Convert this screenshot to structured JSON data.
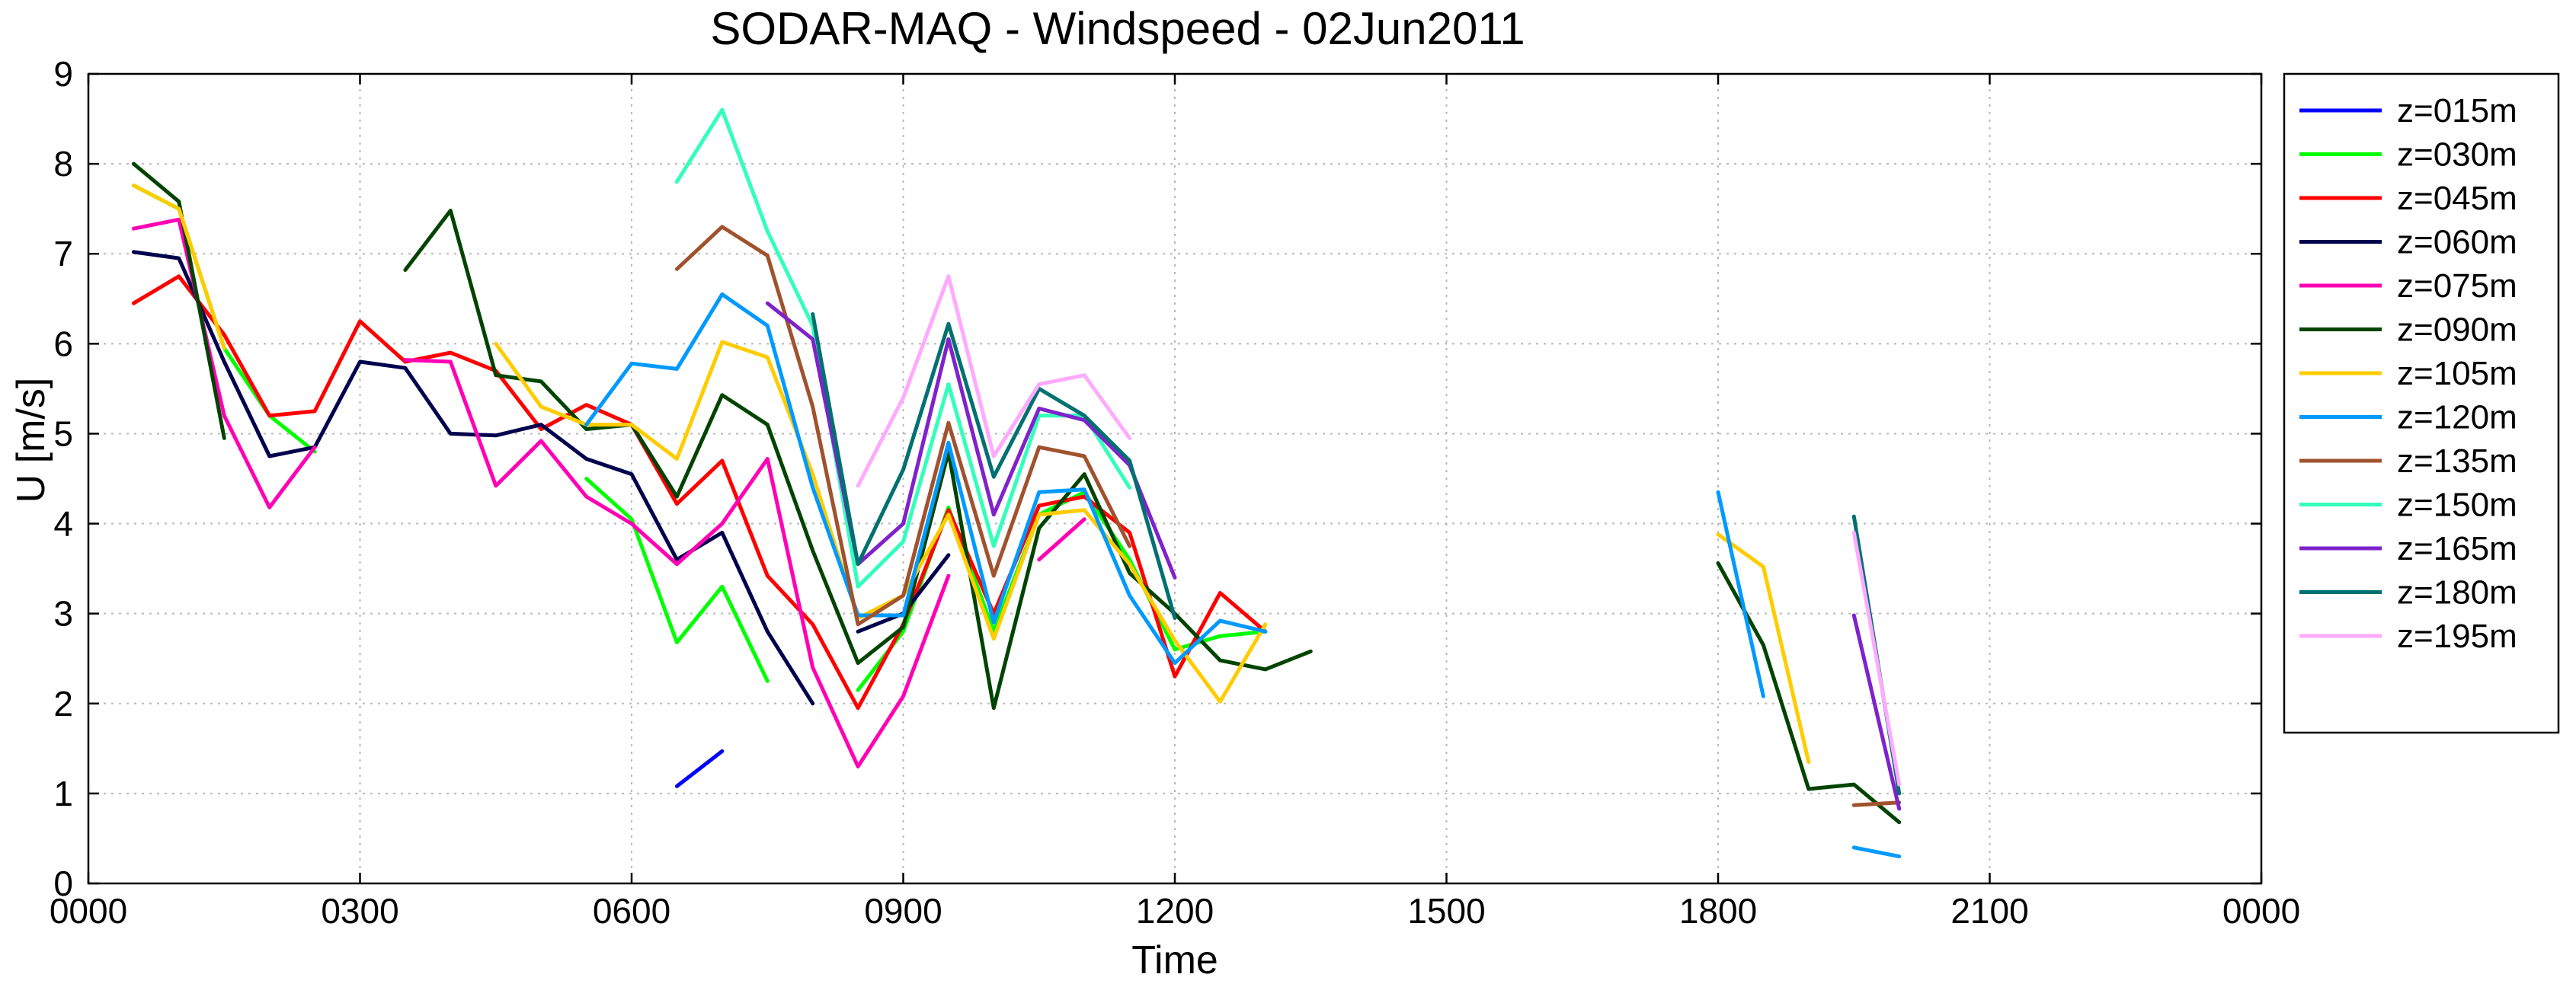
{
  "chart_data": {
    "type": "line",
    "title": "SODAR-MAQ - Windspeed - 02Jun2011",
    "xlabel": "Time",
    "ylabel": "U [m/s]",
    "xlim": [
      0,
      1440
    ],
    "ylim": [
      0,
      9
    ],
    "x_unit": "minutes after 0000",
    "x_ticks": [
      {
        "value": 0,
        "label": "0000"
      },
      {
        "value": 180,
        "label": "0300"
      },
      {
        "value": 360,
        "label": "0600"
      },
      {
        "value": 540,
        "label": "0900"
      },
      {
        "value": 720,
        "label": "1200"
      },
      {
        "value": 900,
        "label": "1500"
      },
      {
        "value": 1080,
        "label": "1800"
      },
      {
        "value": 1260,
        "label": "2100"
      },
      {
        "value": 1440,
        "label": "0000"
      }
    ],
    "y_ticks": [
      0,
      1,
      2,
      3,
      4,
      5,
      6,
      7,
      8,
      9
    ],
    "grid": true,
    "legend_position": "outside-right",
    "series": [
      {
        "name": "z=015m",
        "color": "#0000ff",
        "segments": [
          [
            [
              390,
              1.08
            ],
            [
              420,
              1.47
            ]
          ]
        ]
      },
      {
        "name": "z=030m",
        "color": "#00ff00",
        "segments": [
          [
            [
              30,
              7.76
            ],
            [
              60,
              7.5
            ],
            [
              90,
              5.95
            ],
            [
              120,
              5.2
            ],
            [
              150,
              4.8
            ]
          ],
          [
            [
              330,
              4.5
            ],
            [
              360,
              4.05
            ],
            [
              390,
              2.68
            ],
            [
              420,
              3.3
            ],
            [
              450,
              2.25
            ]
          ],
          [
            [
              510,
              2.15
            ],
            [
              540,
              2.8
            ],
            [
              570,
              4.18
            ],
            [
              600,
              2.8
            ],
            [
              630,
              4.1
            ],
            [
              660,
              4.35
            ],
            [
              690,
              3.6
            ],
            [
              720,
              2.6
            ],
            [
              750,
              2.75
            ],
            [
              780,
              2.8
            ]
          ]
        ]
      },
      {
        "name": "z=045m",
        "color": "#ff0000",
        "segments": [
          [
            [
              30,
              6.45
            ],
            [
              60,
              6.75
            ],
            [
              90,
              6.1
            ],
            [
              120,
              5.2
            ],
            [
              150,
              5.25
            ],
            [
              180,
              6.25
            ],
            [
              210,
              5.8
            ],
            [
              240,
              5.9
            ],
            [
              270,
              5.7
            ],
            [
              300,
              5.05
            ],
            [
              330,
              5.32
            ],
            [
              360,
              5.1
            ],
            [
              390,
              4.22
            ],
            [
              420,
              4.7
            ],
            [
              450,
              3.42
            ],
            [
              480,
              2.88
            ],
            [
              510,
              1.95
            ],
            [
              540,
              2.88
            ],
            [
              570,
              4.15
            ],
            [
              600,
              3.0
            ],
            [
              630,
              4.2
            ],
            [
              660,
              4.3
            ],
            [
              690,
              3.9
            ],
            [
              720,
              2.3
            ],
            [
              750,
              3.23
            ],
            [
              780,
              2.8
            ]
          ]
        ]
      },
      {
        "name": "z=060m",
        "color": "#00004d",
        "segments": [
          [
            [
              30,
              7.02
            ],
            [
              60,
              6.95
            ],
            [
              90,
              5.8
            ],
            [
              120,
              4.75
            ],
            [
              150,
              4.85
            ],
            [
              180,
              5.8
            ],
            [
              210,
              5.73
            ],
            [
              240,
              5.0
            ],
            [
              270,
              4.98
            ],
            [
              300,
              5.1
            ],
            [
              330,
              4.72
            ],
            [
              360,
              4.55
            ],
            [
              390,
              3.6
            ],
            [
              420,
              3.9
            ],
            [
              450,
              2.8
            ],
            [
              480,
              2.0
            ]
          ],
          [
            [
              510,
              2.8
            ],
            [
              540,
              3.0
            ],
            [
              570,
              3.65
            ]
          ]
        ]
      },
      {
        "name": "z=075m",
        "color": "#ff00b4",
        "segments": [
          [
            [
              30,
              7.28
            ],
            [
              60,
              7.38
            ],
            [
              90,
              5.2
            ],
            [
              120,
              4.18
            ],
            [
              150,
              4.85
            ]
          ],
          [
            [
              210,
              5.82
            ],
            [
              240,
              5.8
            ],
            [
              270,
              4.42
            ],
            [
              300,
              4.92
            ],
            [
              330,
              4.3
            ],
            [
              360,
              4.0
            ],
            [
              390,
              3.55
            ],
            [
              420,
              4.0
            ],
            [
              450,
              4.72
            ],
            [
              480,
              2.4
            ],
            [
              510,
              1.3
            ],
            [
              540,
              2.08
            ],
            [
              570,
              3.42
            ]
          ],
          [
            [
              630,
              3.6
            ],
            [
              660,
              4.05
            ]
          ]
        ]
      },
      {
        "name": "z=090m",
        "color": "#004400",
        "segments": [
          [
            [
              30,
              8.0
            ],
            [
              60,
              7.58
            ],
            [
              90,
              4.95
            ]
          ],
          [
            [
              210,
              6.82
            ],
            [
              240,
              7.48
            ],
            [
              270,
              5.65
            ],
            [
              300,
              5.58
            ],
            [
              330,
              5.05
            ],
            [
              360,
              5.1
            ],
            [
              390,
              4.3
            ],
            [
              420,
              5.43
            ],
            [
              450,
              5.1
            ],
            [
              480,
              3.7
            ],
            [
              510,
              2.45
            ],
            [
              540,
              2.85
            ],
            [
              570,
              4.8
            ],
            [
              600,
              1.95
            ],
            [
              630,
              3.95
            ],
            [
              660,
              4.55
            ],
            [
              690,
              3.45
            ],
            [
              720,
              3.0
            ],
            [
              750,
              2.48
            ],
            [
              780,
              2.38
            ],
            [
              810,
              2.58
            ]
          ],
          [
            [
              1080,
              3.56
            ],
            [
              1110,
              2.65
            ],
            [
              1140,
              1.05
            ],
            [
              1170,
              1.1
            ],
            [
              1200,
              0.68
            ]
          ]
        ]
      },
      {
        "name": "z=105m",
        "color": "#ffcc00",
        "segments": [
          [
            [
              30,
              7.76
            ],
            [
              60,
              7.5
            ],
            [
              90,
              5.95
            ]
          ],
          [
            [
              270,
              6.0
            ],
            [
              300,
              5.3
            ],
            [
              330,
              5.1
            ],
            [
              360,
              5.1
            ],
            [
              390,
              4.72
            ],
            [
              420,
              6.02
            ],
            [
              450,
              5.85
            ],
            [
              480,
              4.55
            ],
            [
              510,
              2.95
            ],
            [
              540,
              3.2
            ],
            [
              570,
              4.1
            ],
            [
              600,
              2.72
            ],
            [
              630,
              4.1
            ],
            [
              660,
              4.15
            ],
            [
              690,
              3.55
            ],
            [
              720,
              2.7
            ],
            [
              750,
              2.02
            ],
            [
              780,
              2.88
            ]
          ],
          [
            [
              1080,
              3.88
            ],
            [
              1110,
              3.52
            ],
            [
              1140,
              1.35
            ]
          ]
        ]
      },
      {
        "name": "z=120m",
        "color": "#0099ff",
        "segments": [
          [
            [
              330,
              5.1
            ],
            [
              360,
              5.78
            ],
            [
              390,
              5.72
            ],
            [
              420,
              6.55
            ],
            [
              450,
              6.2
            ],
            [
              480,
              4.4
            ],
            [
              510,
              2.98
            ],
            [
              540,
              2.98
            ],
            [
              570,
              4.9
            ],
            [
              600,
              2.9
            ],
            [
              630,
              4.35
            ],
            [
              660,
              4.38
            ],
            [
              690,
              3.2
            ],
            [
              720,
              2.45
            ],
            [
              750,
              2.92
            ],
            [
              780,
              2.8
            ]
          ],
          [
            [
              1080,
              4.35
            ],
            [
              1110,
              2.08
            ]
          ],
          [
            [
              1170,
              0.4
            ],
            [
              1200,
              0.3
            ]
          ]
        ]
      },
      {
        "name": "z=135m",
        "color": "#a0522d",
        "segments": [
          [
            [
              390,
              6.83
            ],
            [
              420,
              7.3
            ],
            [
              450,
              6.98
            ],
            [
              480,
              5.3
            ],
            [
              510,
              2.88
            ],
            [
              540,
              3.2
            ],
            [
              570,
              5.12
            ],
            [
              600,
              3.42
            ],
            [
              630,
              4.85
            ],
            [
              660,
              4.75
            ],
            [
              690,
              3.75
            ]
          ],
          [
            [
              1170,
              0.87
            ],
            [
              1200,
              0.9
            ]
          ]
        ]
      },
      {
        "name": "z=150m",
        "color": "#33ffbb",
        "segments": [
          [
            [
              390,
              7.8
            ],
            [
              420,
              8.6
            ],
            [
              450,
              7.25
            ],
            [
              480,
              6.2
            ],
            [
              510,
              3.3
            ],
            [
              540,
              3.8
            ],
            [
              570,
              5.55
            ],
            [
              600,
              3.75
            ],
            [
              630,
              5.2
            ],
            [
              660,
              5.2
            ],
            [
              690,
              4.4
            ]
          ]
        ]
      },
      {
        "name": "z=165m",
        "color": "#7f22cc",
        "segments": [
          [
            [
              450,
              6.45
            ],
            [
              480,
              6.05
            ],
            [
              510,
              3.55
            ],
            [
              540,
              4.0
            ],
            [
              570,
              6.05
            ],
            [
              600,
              4.1
            ],
            [
              630,
              5.28
            ],
            [
              660,
              5.15
            ],
            [
              690,
              4.65
            ],
            [
              720,
              3.4
            ]
          ],
          [
            [
              1170,
              2.98
            ],
            [
              1200,
              0.83
            ]
          ]
        ]
      },
      {
        "name": "z=180m",
        "color": "#007070",
        "segments": [
          [
            [
              480,
              6.33
            ],
            [
              510,
              3.55
            ],
            [
              540,
              4.6
            ],
            [
              570,
              6.22
            ],
            [
              600,
              4.52
            ],
            [
              630,
              5.5
            ],
            [
              660,
              5.2
            ],
            [
              690,
              4.7
            ],
            [
              720,
              2.95
            ]
          ],
          [
            [
              1170,
              4.08
            ],
            [
              1200,
              1.0
            ]
          ]
        ]
      },
      {
        "name": "z=195m",
        "color": "#ffaaff",
        "segments": [
          [
            [
              510,
              4.42
            ],
            [
              540,
              5.4
            ],
            [
              570,
              6.75
            ],
            [
              600,
              4.75
            ],
            [
              630,
              5.55
            ],
            [
              660,
              5.65
            ],
            [
              690,
              4.95
            ]
          ],
          [
            [
              1170,
              3.9
            ],
            [
              1200,
              1.1
            ]
          ]
        ]
      }
    ]
  }
}
